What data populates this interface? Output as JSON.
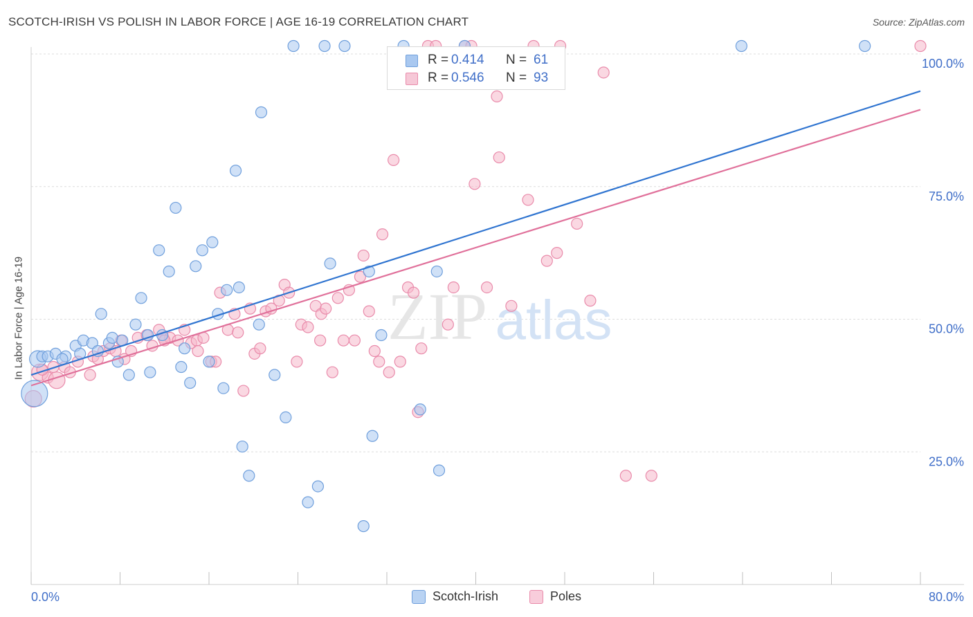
{
  "header": {
    "title": "SCOTCH-IRISH VS POLISH IN LABOR FORCE | AGE 16-19 CORRELATION CHART",
    "source": "Source: ZipAtlas.com"
  },
  "watermark": {
    "zip": "ZIP",
    "atlas": "atlas"
  },
  "stats": [
    {
      "r_label": "R =",
      "r_value": "0.414",
      "n_label": "N =",
      "n_value": "61"
    },
    {
      "r_label": "R =",
      "r_value": "0.546",
      "n_label": "N =",
      "n_value": "93"
    }
  ],
  "legend": [
    "Scotch-Irish",
    "Poles"
  ],
  "colors": {
    "blue_fill": "#a9c8f0",
    "blue_stroke": "#6f9fdc",
    "blue_line": "#2f74d0",
    "pink_fill": "#f6b8cb",
    "pink_stroke": "#e98aaa",
    "pink_line": "#e0709a",
    "axis_text": "#3f6ec8",
    "grid": "#dcdcdc"
  },
  "chart_data": {
    "type": "scatter",
    "title": "SCOTCH-IRISH VS POLISH IN LABOR FORCE | AGE 16-19 CORRELATION CHART",
    "xlabel": "",
    "ylabel": "In Labor Force | Age 16-19",
    "xlim": [
      0,
      80
    ],
    "ylim": [
      0,
      100
    ],
    "x_tick_labels": [
      "0.0%",
      "80.0%"
    ],
    "y_ticks": [
      25,
      50,
      75,
      100
    ],
    "y_tick_labels": [
      "25.0%",
      "50.0%",
      "75.0%",
      "100.0%"
    ],
    "series": [
      {
        "name": "Scotch-Irish",
        "r": 0.414,
        "n": 61,
        "trend": [
          [
            0,
            39.5
          ],
          [
            80,
            93
          ]
        ],
        "points": [
          [
            0.3,
            36,
            3
          ],
          [
            0.6,
            42.5,
            2
          ],
          [
            1.0,
            43,
            1
          ],
          [
            1.5,
            43,
            1
          ],
          [
            2.2,
            43.5,
            1
          ],
          [
            3.1,
            43,
            1
          ],
          [
            4.0,
            45,
            1
          ],
          [
            4.7,
            46,
            1
          ],
          [
            5.5,
            45.5,
            1
          ],
          [
            6.0,
            44,
            1
          ],
          [
            6.3,
            51,
            1
          ],
          [
            7.0,
            45.5,
            1
          ],
          [
            7.3,
            46.5,
            1
          ],
          [
            7.8,
            42,
            1
          ],
          [
            8.2,
            46,
            1
          ],
          [
            8.8,
            39.5,
            1
          ],
          [
            9.4,
            49,
            1
          ],
          [
            9.9,
            54,
            1
          ],
          [
            10.5,
            47,
            1
          ],
          [
            10.7,
            40,
            1
          ],
          [
            11.5,
            63,
            1
          ],
          [
            11.8,
            47,
            1
          ],
          [
            12.4,
            59,
            1
          ],
          [
            13.0,
            71,
            1
          ],
          [
            13.5,
            41,
            1
          ],
          [
            13.8,
            44.5,
            1
          ],
          [
            14.3,
            38,
            1
          ],
          [
            14.8,
            60,
            1
          ],
          [
            15.4,
            63,
            1
          ],
          [
            16.0,
            42,
            1
          ],
          [
            16.3,
            64.5,
            1
          ],
          [
            16.8,
            51,
            1
          ],
          [
            17.3,
            37,
            1
          ],
          [
            17.6,
            55.5,
            1
          ],
          [
            18.4,
            78,
            1
          ],
          [
            18.7,
            56,
            1
          ],
          [
            19.0,
            26,
            1
          ],
          [
            19.6,
            20.5,
            1
          ],
          [
            20.5,
            49,
            1
          ],
          [
            20.7,
            89,
            1
          ],
          [
            21.9,
            39.5,
            1
          ],
          [
            22.9,
            31.5,
            1
          ],
          [
            23.6,
            101.5,
            1
          ],
          [
            24.9,
            15.5,
            1
          ],
          [
            25.8,
            18.5,
            1
          ],
          [
            26.4,
            101.5,
            1
          ],
          [
            26.9,
            60.5,
            1
          ],
          [
            28.2,
            101.5,
            1
          ],
          [
            29.9,
            11,
            1
          ],
          [
            30.4,
            59,
            1
          ],
          [
            30.7,
            28,
            1
          ],
          [
            31.5,
            47,
            1
          ],
          [
            33.5,
            101.5,
            1
          ],
          [
            35.0,
            33,
            1
          ],
          [
            36.5,
            59,
            1
          ],
          [
            36.7,
            21.5,
            1
          ],
          [
            39.0,
            101.5,
            1
          ],
          [
            63.9,
            101.5,
            1
          ],
          [
            75.0,
            101.5,
            1
          ],
          [
            4.4,
            43.5,
            1
          ],
          [
            2.8,
            42.5,
            1
          ]
        ]
      },
      {
        "name": "Poles",
        "r": 0.546,
        "n": 93,
        "trend": [
          [
            0,
            37.5
          ],
          [
            80,
            89.5
          ]
        ],
        "points": [
          [
            0.2,
            35,
            2
          ],
          [
            0.8,
            40,
            2
          ],
          [
            1.5,
            39,
            1
          ],
          [
            2.3,
            38.5,
            2
          ],
          [
            3.0,
            41,
            1
          ],
          [
            3.5,
            40,
            1
          ],
          [
            4.2,
            42,
            1
          ],
          [
            5.3,
            39.5,
            1
          ],
          [
            5.6,
            43,
            1
          ],
          [
            6.5,
            44,
            1
          ],
          [
            7.1,
            44.5,
            1
          ],
          [
            7.6,
            44,
            1
          ],
          [
            8.1,
            46,
            1
          ],
          [
            8.4,
            42.5,
            1
          ],
          [
            9.0,
            44,
            1
          ],
          [
            9.6,
            46.5,
            1
          ],
          [
            10.4,
            47,
            1
          ],
          [
            10.9,
            45,
            1
          ],
          [
            11.5,
            48,
            1
          ],
          [
            11.9,
            46.5,
            1
          ],
          [
            12.5,
            46.5,
            1
          ],
          [
            13.2,
            46,
            1
          ],
          [
            13.8,
            48,
            1
          ],
          [
            14.4,
            45.5,
            1
          ],
          [
            14.9,
            46,
            1
          ],
          [
            15.5,
            46.5,
            1
          ],
          [
            16.2,
            42,
            1
          ],
          [
            16.6,
            42,
            1
          ],
          [
            17.0,
            55,
            1
          ],
          [
            17.7,
            48,
            1
          ],
          [
            18.3,
            51,
            1
          ],
          [
            18.6,
            47.5,
            1
          ],
          [
            19.1,
            36.5,
            1
          ],
          [
            19.7,
            52,
            1
          ],
          [
            20.1,
            43.5,
            1
          ],
          [
            20.6,
            44.5,
            1
          ],
          [
            21.1,
            51.5,
            1
          ],
          [
            21.6,
            52,
            1
          ],
          [
            22.3,
            53.5,
            1
          ],
          [
            22.8,
            56.5,
            1
          ],
          [
            23.2,
            55,
            1
          ],
          [
            23.9,
            42,
            1
          ],
          [
            24.3,
            49,
            1
          ],
          [
            24.9,
            48.5,
            1
          ],
          [
            25.6,
            52.5,
            1
          ],
          [
            26.1,
            51,
            1
          ],
          [
            26.5,
            52,
            1
          ],
          [
            27.1,
            40,
            1
          ],
          [
            27.6,
            54,
            1
          ],
          [
            28.1,
            46,
            1
          ],
          [
            28.6,
            55.5,
            1
          ],
          [
            29.1,
            46,
            1
          ],
          [
            29.6,
            58,
            1
          ],
          [
            29.9,
            62,
            1
          ],
          [
            30.4,
            51.5,
            1
          ],
          [
            30.9,
            44,
            1
          ],
          [
            31.3,
            42,
            1
          ],
          [
            31.6,
            66,
            1
          ],
          [
            32.2,
            40,
            1
          ],
          [
            32.6,
            80,
            1
          ],
          [
            33.2,
            42,
            1
          ],
          [
            33.9,
            56,
            1
          ],
          [
            34.4,
            55,
            1
          ],
          [
            34.8,
            32.5,
            1
          ],
          [
            35.1,
            44.5,
            1
          ],
          [
            35.7,
            101.5,
            1
          ],
          [
            36.4,
            101.5,
            1
          ],
          [
            37.5,
            49,
            1
          ],
          [
            38.0,
            56,
            1
          ],
          [
            39.0,
            101.5,
            1
          ],
          [
            39.6,
            101.5,
            1
          ],
          [
            39.9,
            75.5,
            1
          ],
          [
            41.0,
            56,
            1
          ],
          [
            41.9,
            92,
            1
          ],
          [
            42.1,
            80.5,
            1
          ],
          [
            43.2,
            52.5,
            1
          ],
          [
            44.7,
            72.5,
            1
          ],
          [
            45.2,
            101.5,
            1
          ],
          [
            46.4,
            61,
            1
          ],
          [
            47.3,
            62.5,
            1
          ],
          [
            47.6,
            101.5,
            1
          ],
          [
            49.1,
            68,
            1
          ],
          [
            50.3,
            53.5,
            1
          ],
          [
            51.5,
            96.5,
            1
          ],
          [
            53.5,
            20.5,
            1
          ],
          [
            55.8,
            20.5,
            1
          ],
          [
            80.0,
            101.5,
            1
          ],
          [
            1.0,
            40.5,
            1
          ],
          [
            2.0,
            41,
            1
          ],
          [
            6.0,
            42.5,
            1
          ],
          [
            12.0,
            46,
            1
          ],
          [
            15.0,
            44,
            1
          ],
          [
            26.0,
            46,
            1
          ]
        ]
      }
    ]
  }
}
